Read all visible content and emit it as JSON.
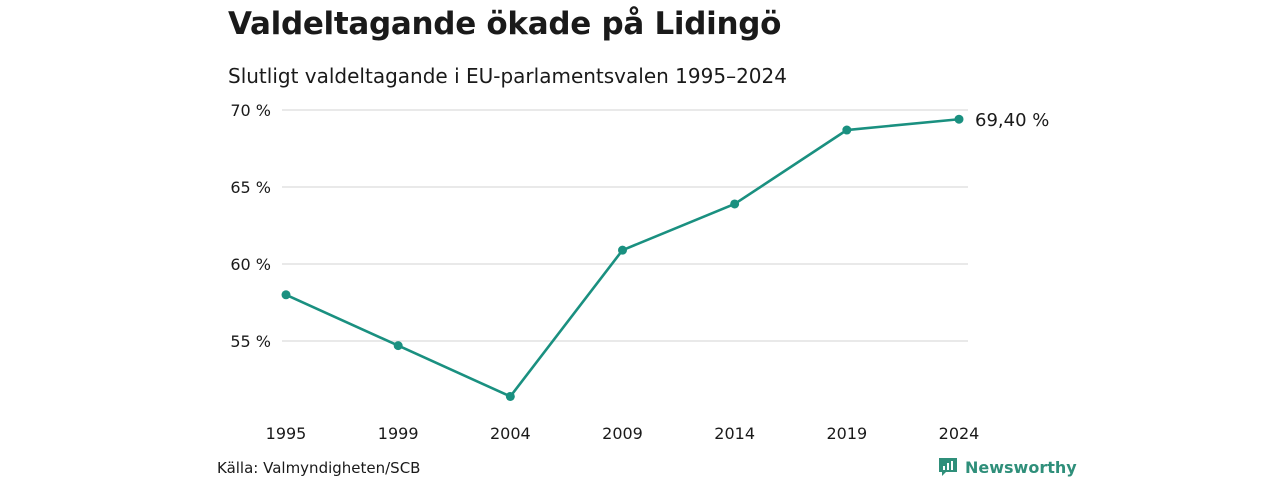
{
  "title": "Valdeltagande ökade på Lidingö",
  "subtitle": "Slutligt valdeltagande i EU-parlamentsvalen 1995–2024",
  "source": "Källa: Valmyndigheten/SCB",
  "brand": {
    "name": "Newsworthy",
    "icon": "newsworthy-logo-icon",
    "color": "#2f8f7a"
  },
  "chart_data": {
    "type": "line",
    "title": "Valdeltagande ökade på Lidingö",
    "subtitle": "Slutligt valdeltagande i EU-parlamentsvalen 1995–2024",
    "categories": [
      "1995",
      "1999",
      "2004",
      "2009",
      "2014",
      "2019",
      "2024"
    ],
    "series": [
      {
        "values": [
          58.0,
          54.7,
          51.4,
          60.9,
          63.9,
          68.7,
          69.4
        ],
        "color": "#1a9080"
      }
    ],
    "ylim": [
      50,
      70
    ],
    "yticks": [
      55,
      60,
      65,
      70
    ],
    "ytick_labels": [
      "55 %",
      "60 %",
      "65 %",
      "70 %"
    ],
    "end_label": "69,40 %",
    "xlabel": "",
    "ylabel": "",
    "grid": "horizontal",
    "legend": "none"
  }
}
